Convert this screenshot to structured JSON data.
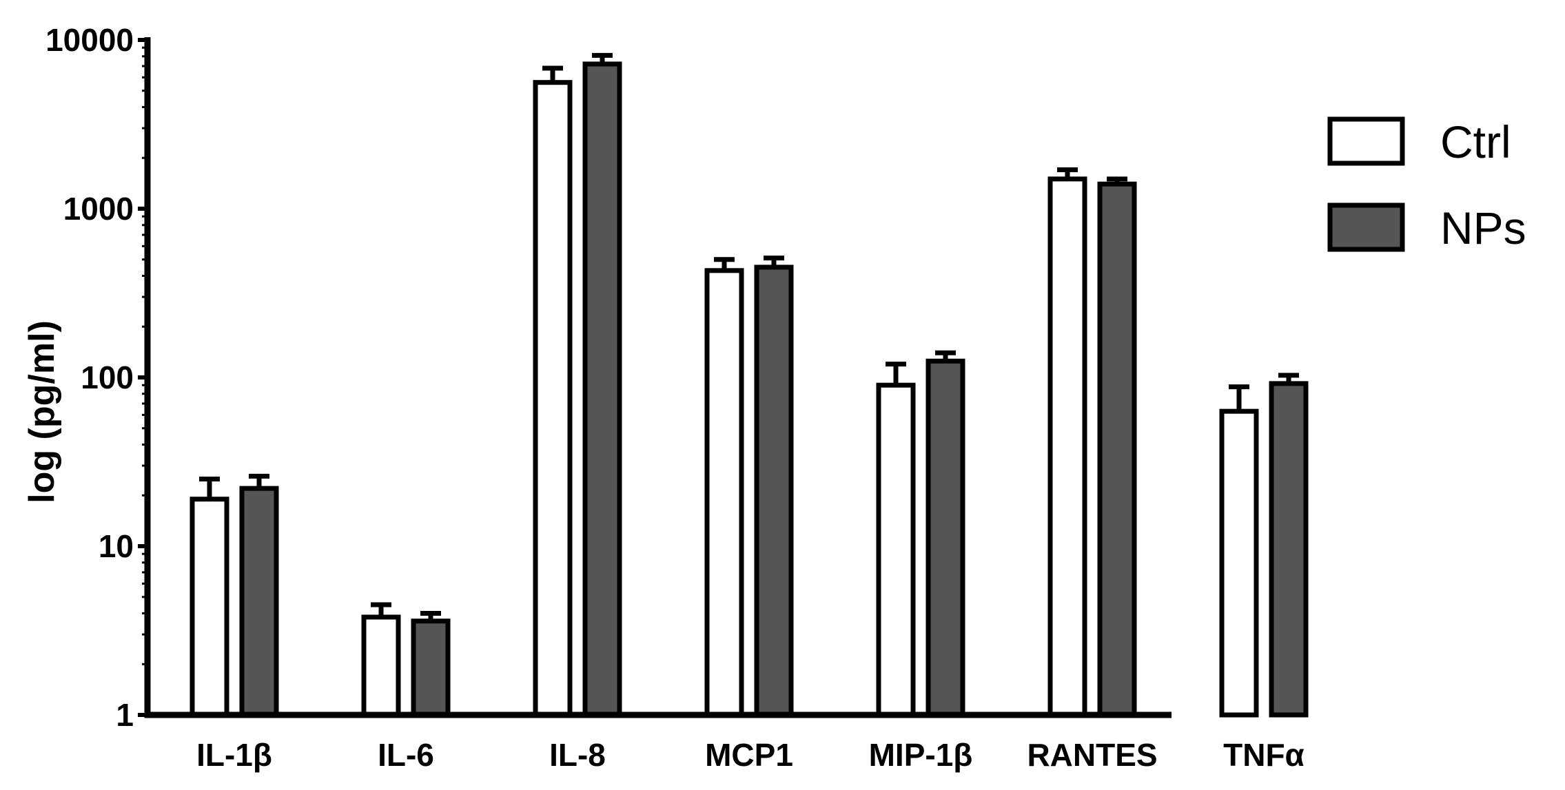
{
  "chart_data": {
    "type": "bar",
    "title": "",
    "xlabel": "",
    "ylabel": "log (pg/ml)",
    "yscale": "log",
    "ylim": [
      1,
      10000
    ],
    "yticks": [
      "1",
      "10",
      "100",
      "1000",
      "10000"
    ],
    "categories": [
      "IL-1β",
      "IL-6",
      "IL-8",
      "MCP1",
      "MIP-1β",
      "RANTES",
      "TNFα"
    ],
    "series": [
      {
        "name": "Ctrl",
        "color": "#ffffff",
        "values": [
          19,
          3.8,
          5600,
          430,
          90,
          1500,
          63
        ],
        "error_upper": [
          25,
          4.5,
          6800,
          500,
          120,
          1700,
          88
        ]
      },
      {
        "name": "NPs",
        "color": "#555555",
        "values": [
          22,
          3.6,
          7200,
          450,
          125,
          1400,
          92
        ],
        "error_upper": [
          26,
          4.0,
          8100,
          510,
          140,
          1500,
          103
        ]
      }
    ],
    "legend": "right",
    "grid": false
  }
}
